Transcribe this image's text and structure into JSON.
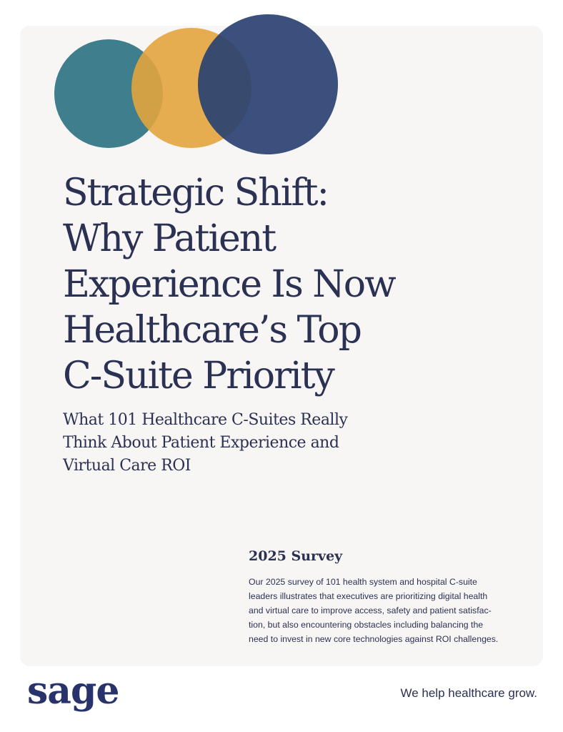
{
  "cover": {
    "title_lines": [
      "Strategic Shift:",
      "Why Patient",
      "Experience Is Now",
      "Healthcare’s Top",
      "C-Suite Priority"
    ],
    "subtitle_lines": [
      "What 101 Healthcare C-Suites Really",
      "Think About Patient Experience and",
      "Virtual Care ROI"
    ],
    "section_heading": "2025 Survey",
    "body_lines": [
      "Our 2025 survey of 101 health system and hospital C-suite",
      "leaders illustrates that executives are prioritizing digital health",
      "and virtual care to improve access, safety and patient satisfac-",
      "tion, but also encountering obstacles including balancing the",
      "need to invest in new core technologies against ROI challenges."
    ]
  },
  "footer": {
    "logo": "sage",
    "tagline": "We help healthcare grow."
  }
}
